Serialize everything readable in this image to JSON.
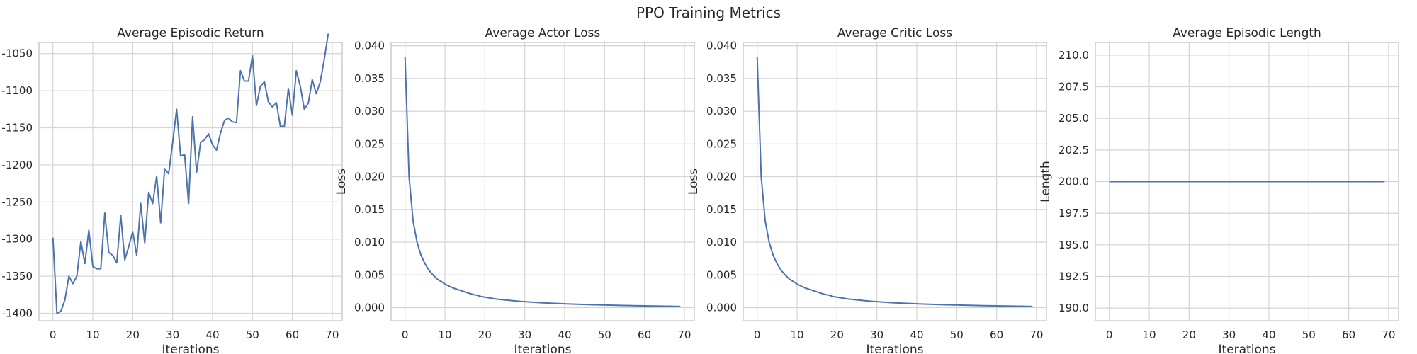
{
  "figure": {
    "title": "PPO Training Metrics"
  },
  "chart_data": [
    {
      "type": "line",
      "title": "Average Episodic Return",
      "xlabel": "Iterations",
      "ylabel": "",
      "xlim": [
        -3.5,
        72.5
      ],
      "ylim": [
        -1410,
        -1035
      ],
      "xticks": [
        0,
        10,
        20,
        30,
        40,
        50,
        60,
        70
      ],
      "yticks": [
        -1400,
        -1350,
        -1300,
        -1250,
        -1200,
        -1150,
        -1100,
        -1050
      ],
      "ytick_labels": [
        "-1400",
        "-1350",
        "-1300",
        "-1250",
        "-1200",
        "-1150",
        "-1100",
        "-1050"
      ],
      "grid": true,
      "color": "#4c72b0",
      "x": [
        0,
        1,
        2,
        3,
        4,
        5,
        6,
        7,
        8,
        9,
        10,
        11,
        12,
        13,
        14,
        15,
        16,
        17,
        18,
        19,
        20,
        21,
        22,
        23,
        24,
        25,
        26,
        27,
        28,
        29,
        30,
        31,
        32,
        33,
        34,
        35,
        36,
        37,
        38,
        39,
        40,
        41,
        42,
        43,
        44,
        45,
        46,
        47,
        48,
        49,
        50,
        51,
        52,
        53,
        54,
        55,
        56,
        57,
        58,
        59,
        60,
        61,
        62,
        63,
        64,
        65,
        66,
        67,
        68,
        69
      ],
      "y": [
        -1298,
        -1400,
        -1397,
        -1382,
        -1350,
        -1360,
        -1350,
        -1303,
        -1333,
        -1288,
        -1337,
        -1340,
        -1340,
        -1265,
        -1318,
        -1322,
        -1332,
        -1268,
        -1328,
        -1310,
        -1290,
        -1322,
        -1252,
        -1305,
        -1237,
        -1252,
        -1215,
        -1278,
        -1205,
        -1212,
        -1170,
        -1125,
        -1188,
        -1186,
        -1252,
        -1135,
        -1210,
        -1170,
        -1166,
        -1158,
        -1173,
        -1180,
        -1157,
        -1140,
        -1137,
        -1142,
        -1143,
        -1073,
        -1087,
        -1087,
        -1053,
        -1120,
        -1094,
        -1088,
        -1115,
        -1122,
        -1116,
        -1148,
        -1148,
        -1097,
        -1133,
        -1073,
        -1094,
        -1125,
        -1117,
        -1085,
        -1104,
        -1088,
        -1058,
        -1023
      ]
    },
    {
      "type": "line",
      "title": "Average Actor Loss",
      "xlabel": "Iterations",
      "ylabel": "Loss",
      "xlim": [
        -3.5,
        72.5
      ],
      "ylim": [
        -0.002,
        0.0405
      ],
      "xticks": [
        0,
        10,
        20,
        30,
        40,
        50,
        60,
        70
      ],
      "yticks": [
        0,
        0.005,
        0.01,
        0.015,
        0.02,
        0.025,
        0.03,
        0.035,
        0.04
      ],
      "ytick_labels": [
        "0.000",
        "0.005",
        "0.010",
        "0.015",
        "0.020",
        "0.025",
        "0.030",
        "0.035",
        "0.040"
      ],
      "grid": true,
      "color": "#4c72b0",
      "x": [
        0,
        1,
        2,
        3,
        4,
        5,
        6,
        7,
        8,
        9,
        10,
        11,
        12,
        13,
        14,
        15,
        16,
        17,
        18,
        19,
        20,
        21,
        22,
        23,
        24,
        25,
        26,
        27,
        28,
        29,
        30,
        31,
        32,
        33,
        34,
        35,
        36,
        37,
        38,
        39,
        40,
        41,
        42,
        43,
        44,
        45,
        46,
        47,
        48,
        49,
        50,
        51,
        52,
        53,
        54,
        55,
        56,
        57,
        58,
        59,
        60,
        61,
        62,
        63,
        64,
        65,
        66,
        67,
        68,
        69
      ],
      "y": [
        0.0383,
        0.02,
        0.0133,
        0.01,
        0.008,
        0.0067,
        0.0057,
        0.005,
        0.0044,
        0.004,
        0.0036,
        0.0033,
        0.003,
        0.0028,
        0.0026,
        0.0024,
        0.0022,
        0.002,
        0.0019,
        0.0017,
        0.0016,
        0.0015,
        0.0014,
        0.0013,
        0.00125,
        0.00118,
        0.00112,
        0.00106,
        0.001,
        0.00095,
        0.0009,
        0.00086,
        0.00082,
        0.00078,
        0.00075,
        0.00072,
        0.00069,
        0.00066,
        0.00063,
        0.00061,
        0.00058,
        0.00056,
        0.00054,
        0.00052,
        0.0005,
        0.00048,
        0.00046,
        0.00044,
        0.00043,
        0.00041,
        0.0004,
        0.00038,
        0.00037,
        0.00035,
        0.00034,
        0.00032,
        0.00031,
        0.0003,
        0.00029,
        0.00028,
        0.00027,
        0.00026,
        0.00025,
        0.00024,
        0.00023,
        0.00022,
        0.00021,
        0.0002,
        0.00019,
        0.00018
      ]
    },
    {
      "type": "line",
      "title": "Average Critic Loss",
      "xlabel": "Iterations",
      "ylabel": "Loss",
      "xlim": [
        -3.5,
        72.5
      ],
      "ylim": [
        -0.002,
        0.0405
      ],
      "xticks": [
        0,
        10,
        20,
        30,
        40,
        50,
        60,
        70
      ],
      "yticks": [
        0,
        0.005,
        0.01,
        0.015,
        0.02,
        0.025,
        0.03,
        0.035,
        0.04
      ],
      "ytick_labels": [
        "0.000",
        "0.005",
        "0.010",
        "0.015",
        "0.020",
        "0.025",
        "0.030",
        "0.035",
        "0.040"
      ],
      "grid": true,
      "color": "#4c72b0",
      "x": [
        0,
        1,
        2,
        3,
        4,
        5,
        6,
        7,
        8,
        9,
        10,
        11,
        12,
        13,
        14,
        15,
        16,
        17,
        18,
        19,
        20,
        21,
        22,
        23,
        24,
        25,
        26,
        27,
        28,
        29,
        30,
        31,
        32,
        33,
        34,
        35,
        36,
        37,
        38,
        39,
        40,
        41,
        42,
        43,
        44,
        45,
        46,
        47,
        48,
        49,
        50,
        51,
        52,
        53,
        54,
        55,
        56,
        57,
        58,
        59,
        60,
        61,
        62,
        63,
        64,
        65,
        66,
        67,
        68,
        69
      ],
      "y": [
        0.0383,
        0.02,
        0.0133,
        0.01,
        0.008,
        0.0067,
        0.0057,
        0.005,
        0.0044,
        0.004,
        0.0036,
        0.0033,
        0.003,
        0.0028,
        0.0026,
        0.0024,
        0.0022,
        0.002,
        0.0019,
        0.0017,
        0.0016,
        0.0015,
        0.0014,
        0.0013,
        0.00125,
        0.00118,
        0.00112,
        0.00106,
        0.001,
        0.00095,
        0.0009,
        0.00086,
        0.00082,
        0.00078,
        0.00075,
        0.00072,
        0.00069,
        0.00066,
        0.00063,
        0.00061,
        0.00058,
        0.00056,
        0.00054,
        0.00052,
        0.0005,
        0.00048,
        0.00046,
        0.00044,
        0.00043,
        0.00041,
        0.0004,
        0.00038,
        0.00037,
        0.00035,
        0.00034,
        0.00032,
        0.00031,
        0.0003,
        0.00029,
        0.00028,
        0.00027,
        0.00026,
        0.00025,
        0.00024,
        0.00023,
        0.00022,
        0.00021,
        0.0002,
        0.00019,
        0.00018
      ]
    },
    {
      "type": "line",
      "title": "Average Episodic Length",
      "xlabel": "Iterations",
      "ylabel": "Length",
      "xlim": [
        -3.5,
        72.5
      ],
      "ylim": [
        189,
        211
      ],
      "xticks": [
        0,
        10,
        20,
        30,
        40,
        50,
        60,
        70
      ],
      "yticks": [
        190,
        192.5,
        195,
        197.5,
        200,
        202.5,
        205,
        207.5,
        210
      ],
      "ytick_labels": [
        "190.0",
        "192.5",
        "195.0",
        "197.5",
        "200.0",
        "202.5",
        "205.0",
        "207.5",
        "210.0"
      ],
      "grid": true,
      "color": "#4c72b0",
      "x": [
        0,
        69
      ],
      "y": [
        200,
        200
      ]
    }
  ]
}
